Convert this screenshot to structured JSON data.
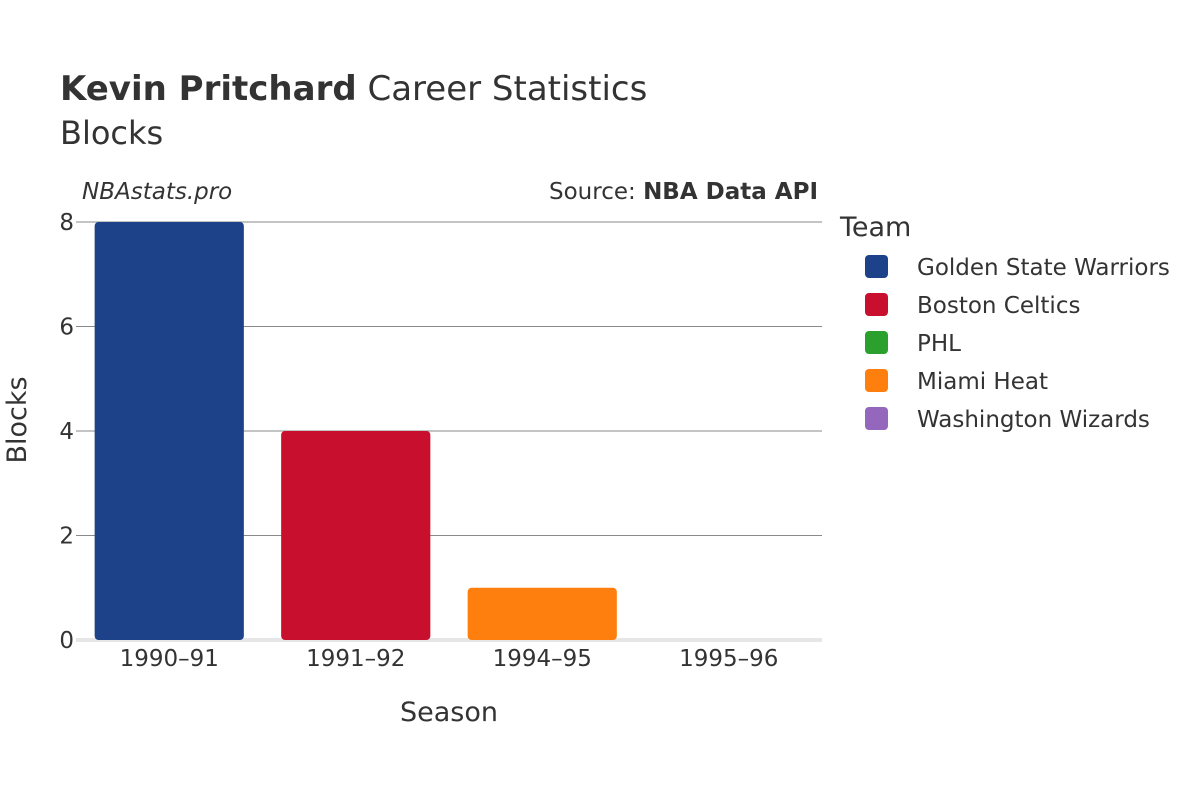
{
  "header": {
    "title_bold": "Kevin Pritchard",
    "title_rest": " Career Statistics",
    "subtitle": "Blocks",
    "watermark": "NBAstats.pro",
    "source_prefix": "Source: ",
    "source_bold": "NBA Data API"
  },
  "chart_data": {
    "type": "bar",
    "categories": [
      "1990–91",
      "1991–92",
      "1994–95",
      "1995–96"
    ],
    "values": [
      8,
      4,
      1,
      0
    ],
    "bar_teams": [
      "Golden State Warriors",
      "Boston Celtics",
      "Miami Heat",
      "Washington Wizards"
    ],
    "title": "Kevin Pritchard Career Statistics",
    "subtitle": "Blocks",
    "xlabel": "Season",
    "ylabel": "Blocks",
    "ylim": [
      0,
      8
    ],
    "yticks": [
      0,
      2,
      4,
      6,
      8
    ],
    "grid": true,
    "legend_placement": "right",
    "legend": {
      "title": "Team",
      "items": [
        {
          "name": "Golden State Warriors",
          "color": "#1d428a"
        },
        {
          "name": "Boston Celtics",
          "color": "#c8102e"
        },
        {
          "name": "PHL",
          "color": "#2ca02c"
        },
        {
          "name": "Miami Heat",
          "color": "#ff7f0e"
        },
        {
          "name": "Washington Wizards",
          "color": "#9467bd"
        }
      ]
    }
  }
}
